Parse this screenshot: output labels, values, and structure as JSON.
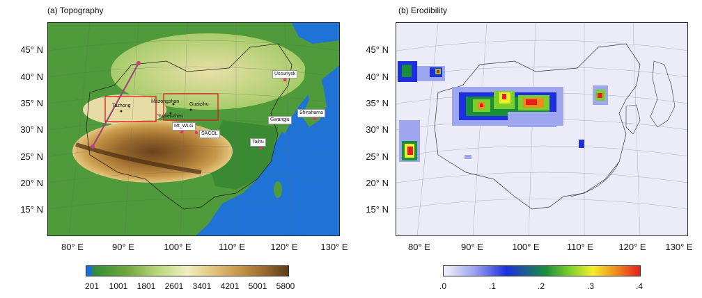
{
  "panels": {
    "topography": {
      "title": "(a) Topography"
    },
    "erodibility": {
      "title": "(b) Erodibility"
    }
  },
  "lat_labels": [
    "45° N",
    "40° N",
    "35° N",
    "30° N",
    "25° N",
    "20° N",
    "15° N"
  ],
  "lon_labels": [
    "80° E",
    "90° E",
    "100° E",
    "110° E",
    "120° E",
    "130° E"
  ],
  "colorbar_topo": {
    "labels": [
      "201",
      "1001",
      "1801",
      "2601",
      "3401",
      "4201",
      "5001",
      "5800"
    ],
    "colors": [
      "#1a6fd6",
      "#2e8b3a",
      "#6fa83a",
      "#b8d77a",
      "#f0eec0",
      "#e4c77f",
      "#c8984a",
      "#9a6a2c",
      "#5c3a1c"
    ]
  },
  "colorbar_erod": {
    "labels": [
      ".0",
      ".1",
      ".2",
      ".3",
      ".4"
    ],
    "colors": [
      "#f2f2fa",
      "#9fa6f0",
      "#1d2fe0",
      "#1a8f3a",
      "#7ccf2a",
      "#f5ee2a",
      "#f08a1a",
      "#e81e1e"
    ]
  },
  "sites": {
    "taklimakan": "Tazhong",
    "mazongshan": "Mazongshan",
    "guaizihu": "Guaizihu",
    "yumenzhen": "Yumenzhen",
    "mtwlg": "Mt_WLG",
    "sacol": "SACOL",
    "taihu": "Taihu",
    "ussuriysk": "Ussuriysk",
    "gwangju": "Gwangju",
    "shirahama": "Shirahama"
  },
  "colors": {
    "ocean": "#1f72d6",
    "site_marker": "#e0307a",
    "box": "#e01818",
    "transect": "#9a4a7a",
    "erod_bg": "#ececf8"
  }
}
